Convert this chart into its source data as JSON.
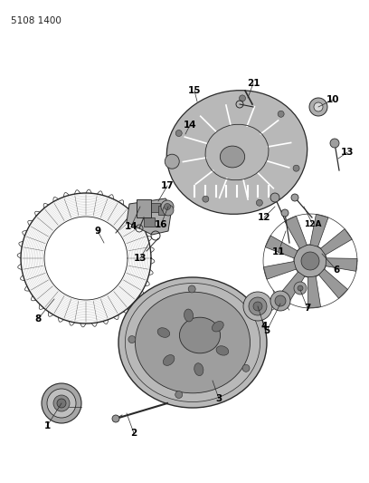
{
  "part_number": "5108 1400",
  "background_color": "#ffffff",
  "line_color": "#2a2a2a",
  "label_color": "#000000",
  "figsize": [
    4.08,
    5.33
  ],
  "dpi": 100,
  "gray_fill": "#c8c8c8",
  "dark_gray": "#555555",
  "mid_gray": "#888888",
  "light_gray": "#dddddd"
}
